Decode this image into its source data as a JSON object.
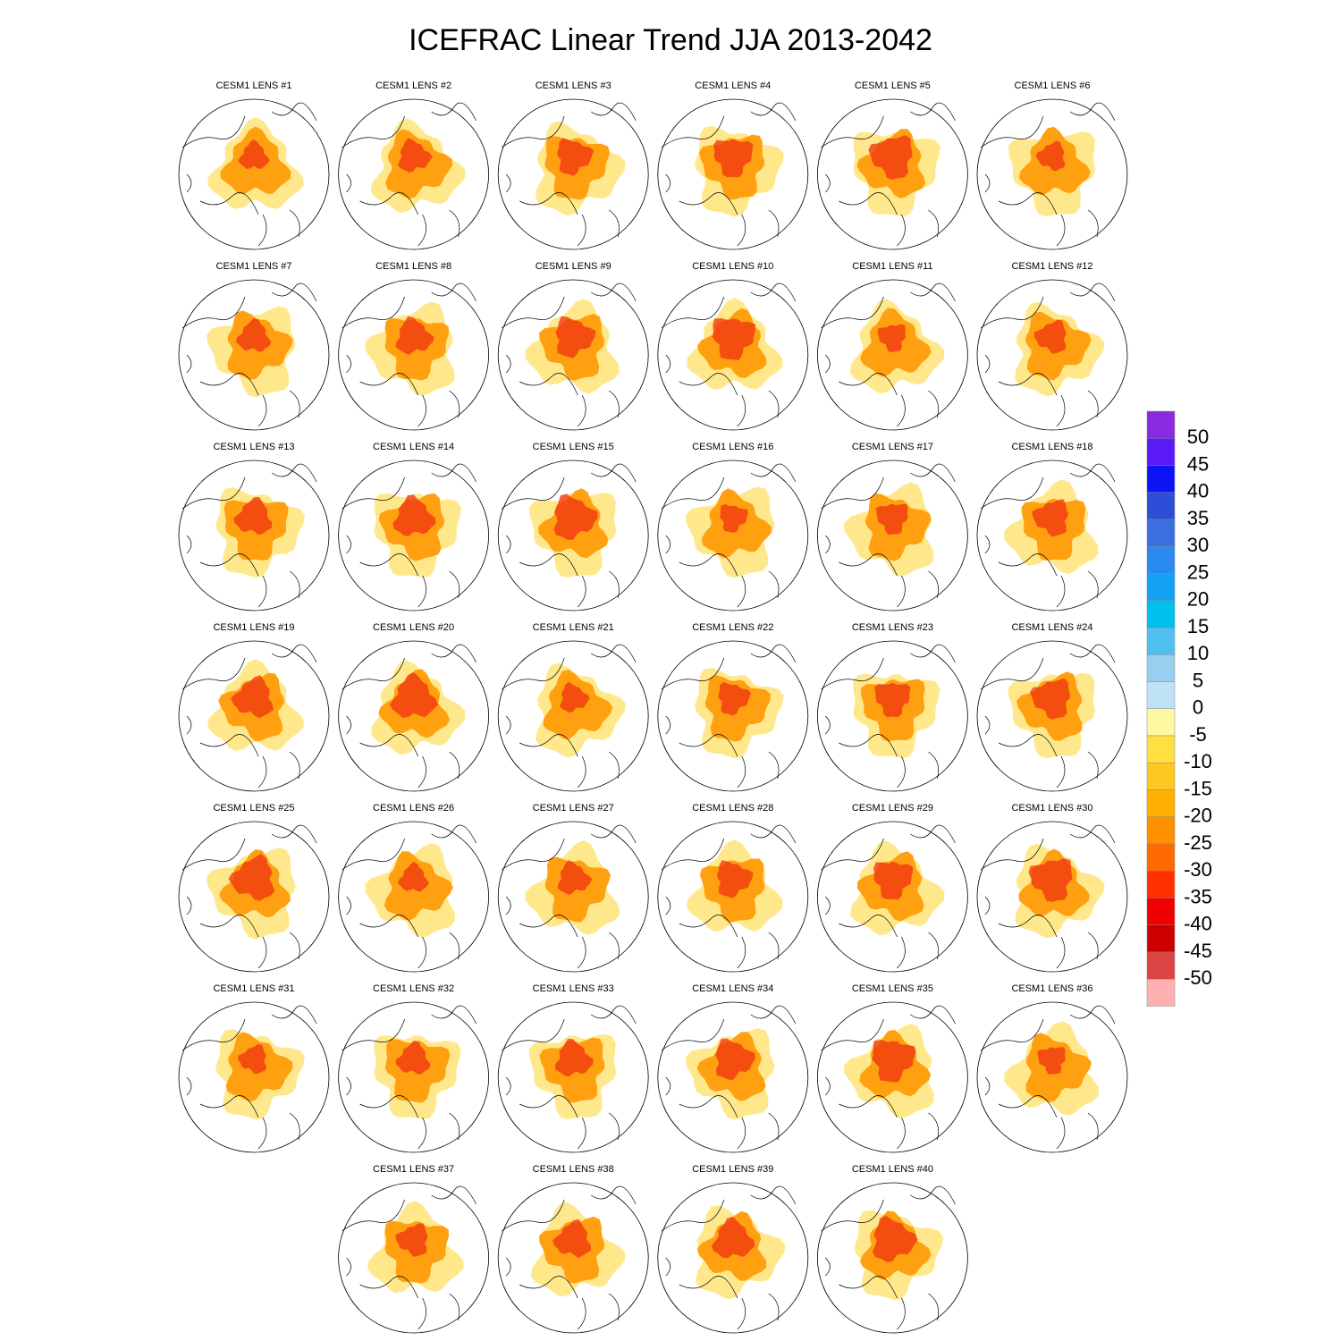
{
  "title": "ICEFRAC Linear Trend JJA 2013-2042",
  "panels": [
    "CESM1 LENS #1",
    "CESM1 LENS #2",
    "CESM1 LENS #3",
    "CESM1 LENS #4",
    "CESM1 LENS #5",
    "CESM1 LENS #6",
    "CESM1 LENS #7",
    "CESM1 LENS #8",
    "CESM1 LENS #9",
    "CESM1 LENS #10",
    "CESM1 LENS #11",
    "CESM1 LENS #12",
    "CESM1 LENS #13",
    "CESM1 LENS #14",
    "CESM1 LENS #15",
    "CESM1 LENS #16",
    "CESM1 LENS #17",
    "CESM1 LENS #18",
    "CESM1 LENS #19",
    "CESM1 LENS #20",
    "CESM1 LENS #21",
    "CESM1 LENS #22",
    "CESM1 LENS #23",
    "CESM1 LENS #24",
    "CESM1 LENS #25",
    "CESM1 LENS #26",
    "CESM1 LENS #27",
    "CESM1 LENS #28",
    "CESM1 LENS #29",
    "CESM1 LENS #30",
    "CESM1 LENS #31",
    "CESM1 LENS #32",
    "CESM1 LENS #33",
    "CESM1 LENS #34",
    "CESM1 LENS #35",
    "CESM1 LENS #36",
    "CESM1 LENS #37",
    "CESM1 LENS #38",
    "CESM1 LENS #39",
    "CESM1 LENS #40"
  ],
  "colorbar": {
    "levels": [
      50,
      45,
      40,
      35,
      30,
      25,
      20,
      15,
      10,
      5,
      0,
      -5,
      -10,
      -15,
      -20,
      -25,
      -30,
      -35,
      -40,
      -45,
      -50
    ],
    "colors": [
      "#8a2be2",
      "#5a1af5",
      "#0a14f5",
      "#2d4fd8",
      "#3a6fe0",
      "#2a8af0",
      "#14a2f5",
      "#00c0f0",
      "#50c0f0",
      "#98cfee",
      "#bfe3f5",
      "#fff8a0",
      "#ffe040",
      "#ffc820",
      "#ffb000",
      "#ff9000",
      "#ff6a00",
      "#ff3000",
      "#f00000",
      "#cc0000",
      "#dd4444",
      "#ffb0b0"
    ]
  }
}
